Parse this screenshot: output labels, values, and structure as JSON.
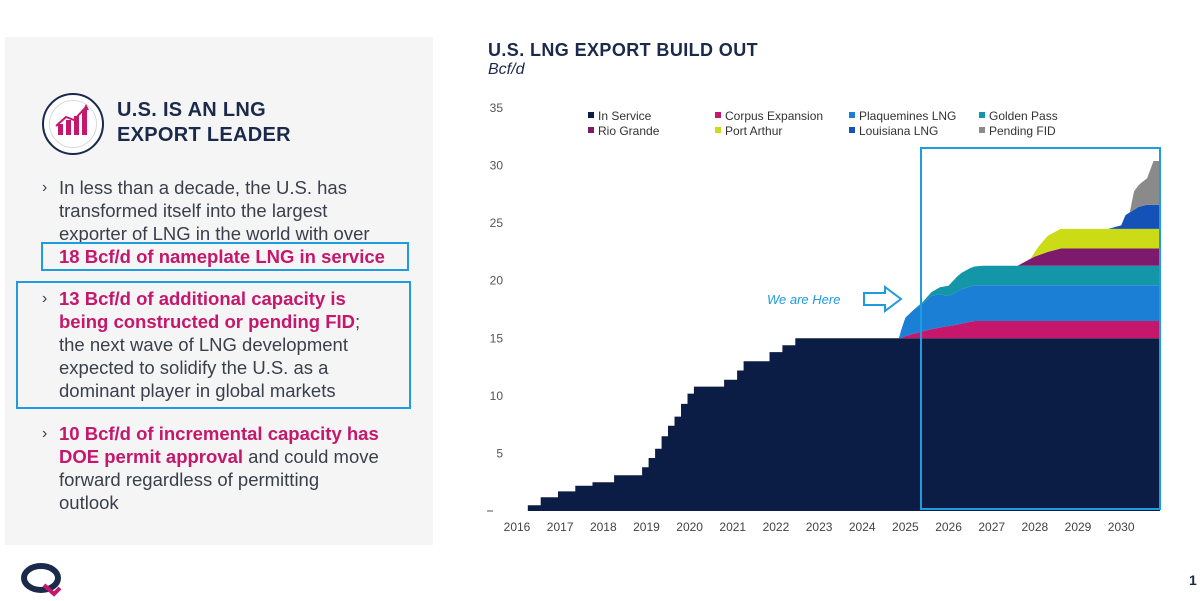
{
  "panel": {
    "title_line1": "U.S. IS AN LNG",
    "title_line2": "EXPORT LEADER",
    "bullet1": {
      "l1": "In less than a decade, the U.S. has",
      "l2": "transformed itself into the largest",
      "l3": "exporter of LNG in the world with over",
      "l4": "18 Bcf/d of nameplate LNG in service"
    },
    "bullet2": {
      "l1": "13 Bcf/d of additional capacity is",
      "l2a": "being constructed or pending FID",
      "l2b": ";",
      "l3": "the next wave of LNG development",
      "l4": "expected to solidify the U.S. as a",
      "l5": "dominant player in global markets"
    },
    "bullet3": {
      "l1": "10 Bcf/d of incremental capacity has",
      "l2a": "DOE permit approval",
      "l2b": " and could move",
      "l3": "forward regardless of permitting",
      "l4": "outlook"
    }
  },
  "page_number": "1",
  "colors": {
    "navy": "#0b1d45",
    "magenta": "#c5176b",
    "highlight_box": "#1f9be0"
  },
  "chart_data": {
    "type": "area",
    "title": "U.S. LNG EXPORT BUILD OUT",
    "ylabel": "Bcf/d",
    "ylim": [
      0,
      35
    ],
    "yticks": [
      5,
      10,
      15,
      20,
      25,
      30,
      35
    ],
    "xlim": [
      2016,
      2030.9
    ],
    "xticks": [
      2016,
      2017,
      2018,
      2019,
      2020,
      2021,
      2022,
      2023,
      2024,
      2025,
      2026,
      2027,
      2028,
      2029,
      2030
    ],
    "stacked": true,
    "grid": false,
    "legend_position": "top",
    "annotation": "We are Here",
    "series": [
      {
        "name": "In Service",
        "color": "#0b1d45",
        "points": [
          [
            2016,
            0
          ],
          [
            2016.25,
            0
          ],
          [
            2016.25,
            0.5
          ],
          [
            2016.55,
            0.5
          ],
          [
            2016.55,
            1.2
          ],
          [
            2016.95,
            1.2
          ],
          [
            2016.95,
            1.7
          ],
          [
            2017.35,
            1.7
          ],
          [
            2017.35,
            2.2
          ],
          [
            2017.75,
            2.2
          ],
          [
            2017.75,
            2.5
          ],
          [
            2018.25,
            2.5
          ],
          [
            2018.25,
            3.1
          ],
          [
            2018.9,
            3.1
          ],
          [
            2018.9,
            3.8
          ],
          [
            2019.05,
            3.8
          ],
          [
            2019.05,
            4.6
          ],
          [
            2019.2,
            4.6
          ],
          [
            2019.2,
            5.4
          ],
          [
            2019.35,
            5.4
          ],
          [
            2019.35,
            6.5
          ],
          [
            2019.5,
            6.5
          ],
          [
            2019.5,
            7.4
          ],
          [
            2019.65,
            7.4
          ],
          [
            2019.65,
            8.2
          ],
          [
            2019.8,
            8.2
          ],
          [
            2019.8,
            9.3
          ],
          [
            2019.95,
            9.3
          ],
          [
            2019.95,
            10.2
          ],
          [
            2020.1,
            10.2
          ],
          [
            2020.1,
            10.8
          ],
          [
            2020.8,
            10.8
          ],
          [
            2020.8,
            11.4
          ],
          [
            2021.1,
            11.4
          ],
          [
            2021.1,
            12.2
          ],
          [
            2021.25,
            12.2
          ],
          [
            2021.25,
            13.0
          ],
          [
            2021.85,
            13.0
          ],
          [
            2021.85,
            13.8
          ],
          [
            2022.15,
            13.8
          ],
          [
            2022.15,
            14.4
          ],
          [
            2022.45,
            14.4
          ],
          [
            2022.45,
            15.0
          ],
          [
            2025.5,
            15.0
          ],
          [
            2030.9,
            15.0
          ]
        ]
      },
      {
        "name": "Corpus Expansion",
        "color": "#c5176b",
        "points": [
          [
            2016,
            0
          ],
          [
            2024.9,
            0
          ],
          [
            2025.0,
            0.2
          ],
          [
            2025.3,
            0.5
          ],
          [
            2025.6,
            0.8
          ],
          [
            2025.9,
            1.0
          ],
          [
            2026.2,
            1.2
          ],
          [
            2026.6,
            1.5
          ],
          [
            2027.0,
            1.5
          ],
          [
            2030.9,
            1.5
          ]
        ]
      },
      {
        "name": "Plaquemines LNG",
        "color": "#1c7fd6",
        "points": [
          [
            2016,
            0
          ],
          [
            2024.85,
            0
          ],
          [
            2024.9,
            0.7
          ],
          [
            2025.0,
            1.6
          ],
          [
            2025.2,
            2.1
          ],
          [
            2025.4,
            2.4
          ],
          [
            2025.6,
            2.9
          ],
          [
            2025.8,
            2.9
          ],
          [
            2026.0,
            2.6
          ],
          [
            2026.3,
            3.0
          ],
          [
            2026.6,
            3.1
          ],
          [
            2030.9,
            3.1
          ]
        ]
      },
      {
        "name": "Golden Pass",
        "color": "#1396a8",
        "points": [
          [
            2016,
            0
          ],
          [
            2025.2,
            0
          ],
          [
            2025.6,
            0.3
          ],
          [
            2026.0,
            0.9
          ],
          [
            2026.2,
            1.3
          ],
          [
            2026.5,
            1.6
          ],
          [
            2026.8,
            1.7
          ],
          [
            2030.9,
            1.7
          ]
        ]
      },
      {
        "name": "Rio Grande",
        "color": "#7d1a6e",
        "points": [
          [
            2016,
            0
          ],
          [
            2027.6,
            0
          ],
          [
            2027.8,
            0.4
          ],
          [
            2028.0,
            0.8
          ],
          [
            2028.3,
            1.2
          ],
          [
            2028.6,
            1.5
          ],
          [
            2030.9,
            1.5
          ]
        ]
      },
      {
        "name": "Port Arthur",
        "color": "#cbdc17",
        "points": [
          [
            2016,
            0
          ],
          [
            2027.9,
            0
          ],
          [
            2028.1,
            0.8
          ],
          [
            2028.3,
            1.4
          ],
          [
            2028.6,
            1.7
          ],
          [
            2030.9,
            1.7
          ]
        ]
      },
      {
        "name": "Louisiana LNG",
        "color": "#1452b8",
        "points": [
          [
            2016,
            0
          ],
          [
            2029.7,
            0
          ],
          [
            2030.0,
            0.3
          ],
          [
            2030.1,
            1.2
          ],
          [
            2030.4,
            1.9
          ],
          [
            2030.6,
            2.1
          ],
          [
            2030.9,
            2.1
          ]
        ]
      },
      {
        "name": "Pending FID",
        "color": "#8a8a8a",
        "points": [
          [
            2016,
            0
          ],
          [
            2030.2,
            0
          ],
          [
            2030.25,
            0.8
          ],
          [
            2030.3,
            1.6
          ],
          [
            2030.45,
            2.0
          ],
          [
            2030.6,
            2.3
          ],
          [
            2030.75,
            3.8
          ],
          [
            2030.9,
            3.8
          ]
        ]
      }
    ]
  }
}
